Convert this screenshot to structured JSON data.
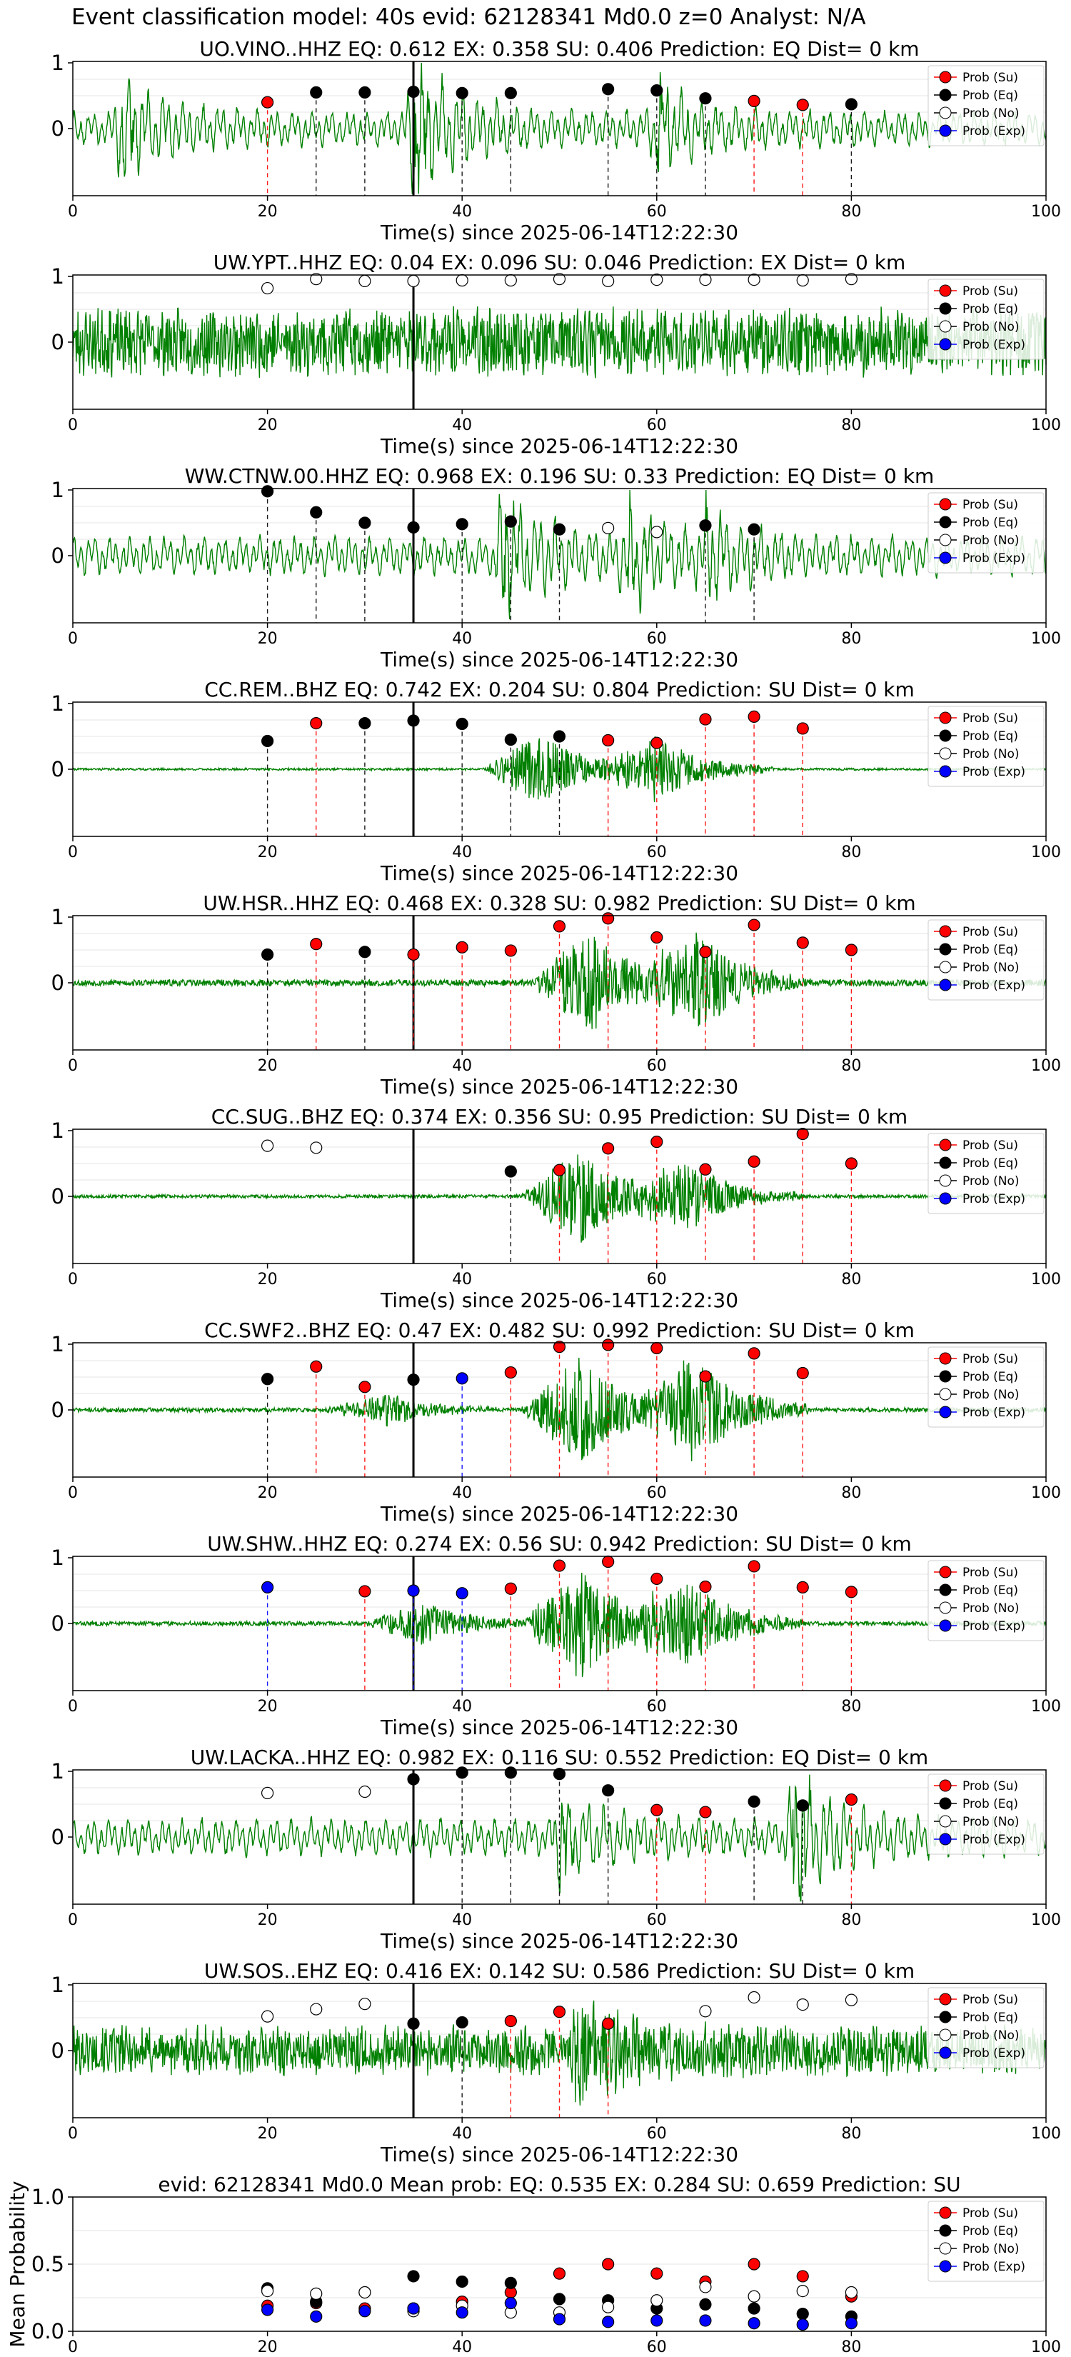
{
  "page": {
    "title": "Event classification model: 40s evid: 62128341 Md0.0 z=0 Analyst: N/A"
  },
  "colors": {
    "trace": "#008000",
    "su": "#ff0000",
    "eq": "#000000",
    "no": "#ffffff",
    "exp": "#0000ff",
    "line_su": "#ff0000",
    "line_eq": "#000000",
    "line_no": "#1f7a1f",
    "line_exp": "#0000ff"
  },
  "legend": {
    "entries": [
      "Prob (Su)",
      "Prob (Eq)",
      "Prob (No)",
      "Prob (Exp)"
    ],
    "placement": "right"
  },
  "chart_data": [
    {
      "type": "line",
      "title": "UO.VINO..HHZ   EQ: 0.612  EX: 0.358  SU: 0.406   Prediction: EQ    Dist= 0 km",
      "xlabel": "Time(s) since 2025-06-14T12:22:30",
      "ylabel": "",
      "xlim": [
        0,
        100
      ],
      "ylim": [
        -1,
        1
      ],
      "xticks": [
        "0",
        "20",
        "40",
        "60",
        "80",
        "100"
      ],
      "yticks": [
        "0",
        "1"
      ],
      "onset_line": 35,
      "trace": {
        "style": "low",
        "seed": 11,
        "amp": 0.28,
        "events": [
          [
            5,
            0.6
          ],
          [
            35,
            0.9
          ],
          [
            60,
            0.5
          ]
        ]
      },
      "points": [
        {
          "x": 20,
          "y": 0.4,
          "cls": "su"
        },
        {
          "x": 25,
          "y": 0.55,
          "cls": "eq"
        },
        {
          "x": 30,
          "y": 0.55,
          "cls": "eq"
        },
        {
          "x": 35,
          "y": 0.56,
          "cls": "eq"
        },
        {
          "x": 40,
          "y": 0.54,
          "cls": "eq"
        },
        {
          "x": 45,
          "y": 0.54,
          "cls": "eq"
        },
        {
          "x": 55,
          "y": 0.6,
          "cls": "eq"
        },
        {
          "x": 60,
          "y": 0.58,
          "cls": "eq"
        },
        {
          "x": 65,
          "y": 0.46,
          "cls": "eq"
        },
        {
          "x": 70,
          "y": 0.42,
          "cls": "su"
        },
        {
          "x": 75,
          "y": 0.36,
          "cls": "su"
        },
        {
          "x": 80,
          "y": 0.37,
          "cls": "eq"
        }
      ]
    },
    {
      "type": "line",
      "title": "UW.YPT..HHZ   EQ: 0.04  EX: 0.096  SU: 0.046   Prediction: EX    Dist= 0 km",
      "xlabel": "Time(s) since 2025-06-14T12:22:30",
      "ylabel": "",
      "xlim": [
        0,
        100
      ],
      "ylim": [
        -1,
        1
      ],
      "xticks": [
        "0",
        "20",
        "40",
        "60",
        "80",
        "100"
      ],
      "yticks": [
        "0",
        "1"
      ],
      "onset_line": 35,
      "trace": {
        "style": "noise",
        "seed": 23,
        "amp": 0.55,
        "events": []
      },
      "points": [
        {
          "x": 20,
          "y": 0.82,
          "cls": "no"
        },
        {
          "x": 25,
          "y": 0.96,
          "cls": "no"
        },
        {
          "x": 30,
          "y": 0.93,
          "cls": "no"
        },
        {
          "x": 35,
          "y": 0.93,
          "cls": "no"
        },
        {
          "x": 40,
          "y": 0.94,
          "cls": "no"
        },
        {
          "x": 45,
          "y": 0.94,
          "cls": "no"
        },
        {
          "x": 50,
          "y": 0.96,
          "cls": "no"
        },
        {
          "x": 55,
          "y": 0.93,
          "cls": "no"
        },
        {
          "x": 60,
          "y": 0.95,
          "cls": "no"
        },
        {
          "x": 65,
          "y": 0.95,
          "cls": "no"
        },
        {
          "x": 70,
          "y": 0.95,
          "cls": "no"
        },
        {
          "x": 75,
          "y": 0.94,
          "cls": "no"
        },
        {
          "x": 80,
          "y": 0.96,
          "cls": "no"
        }
      ]
    },
    {
      "type": "line",
      "title": "WW.CTNW.00.HHZ   EQ: 0.968  EX: 0.196  SU: 0.33   Prediction: EQ    Dist= 0 km",
      "xlabel": "Time(s) since 2025-06-14T12:22:30",
      "ylabel": "",
      "xlim": [
        0,
        100
      ],
      "ylim": [
        -1,
        1
      ],
      "xticks": [
        "0",
        "20",
        "40",
        "60",
        "80",
        "100"
      ],
      "yticks": [
        "0",
        "1"
      ],
      "onset_line": 35,
      "trace": {
        "style": "low",
        "seed": 37,
        "amp": 0.32,
        "events": [
          [
            44,
            0.75
          ],
          [
            57,
            0.55
          ],
          [
            65,
            0.35
          ]
        ]
      },
      "points": [
        {
          "x": 20,
          "y": 0.98,
          "cls": "eq"
        },
        {
          "x": 25,
          "y": 0.66,
          "cls": "eq"
        },
        {
          "x": 30,
          "y": 0.5,
          "cls": "eq"
        },
        {
          "x": 35,
          "y": 0.43,
          "cls": "eq"
        },
        {
          "x": 40,
          "y": 0.48,
          "cls": "eq"
        },
        {
          "x": 45,
          "y": 0.52,
          "cls": "eq"
        },
        {
          "x": 50,
          "y": 0.4,
          "cls": "eq"
        },
        {
          "x": 55,
          "y": 0.42,
          "cls": "no"
        },
        {
          "x": 60,
          "y": 0.36,
          "cls": "no"
        },
        {
          "x": 65,
          "y": 0.46,
          "cls": "eq"
        },
        {
          "x": 70,
          "y": 0.4,
          "cls": "eq"
        }
      ]
    },
    {
      "type": "line",
      "title": "CC.REM..BHZ   EQ: 0.742  EX: 0.204  SU: 0.804   Prediction: SU    Dist= 0 km",
      "xlabel": "Time(s) since 2025-06-14T12:22:30",
      "ylabel": "",
      "xlim": [
        0,
        100
      ],
      "ylim": [
        -1,
        1
      ],
      "xticks": [
        "0",
        "20",
        "40",
        "60",
        "80",
        "100"
      ],
      "yticks": [
        "0",
        "1"
      ],
      "onset_line": 35,
      "trace": {
        "style": "burst",
        "seed": 41,
        "amp": 0.02,
        "events": [
          [
            48,
            0.55
          ],
          [
            60,
            0.5
          ]
        ]
      },
      "points": [
        {
          "x": 20,
          "y": 0.43,
          "cls": "eq"
        },
        {
          "x": 25,
          "y": 0.7,
          "cls": "su"
        },
        {
          "x": 30,
          "y": 0.7,
          "cls": "eq"
        },
        {
          "x": 35,
          "y": 0.74,
          "cls": "eq"
        },
        {
          "x": 40,
          "y": 0.69,
          "cls": "eq"
        },
        {
          "x": 45,
          "y": 0.45,
          "cls": "eq"
        },
        {
          "x": 50,
          "y": 0.5,
          "cls": "eq"
        },
        {
          "x": 55,
          "y": 0.44,
          "cls": "su"
        },
        {
          "x": 60,
          "y": 0.4,
          "cls": "su"
        },
        {
          "x": 65,
          "y": 0.76,
          "cls": "su"
        },
        {
          "x": 70,
          "y": 0.8,
          "cls": "su"
        },
        {
          "x": 75,
          "y": 0.62,
          "cls": "su"
        }
      ]
    },
    {
      "type": "line",
      "title": "UW.HSR..HHZ   EQ: 0.468  EX: 0.328  SU: 0.982   Prediction: SU    Dist= 0 km",
      "xlabel": "Time(s) since 2025-06-14T12:22:30",
      "ylabel": "",
      "xlim": [
        0,
        100
      ],
      "ylim": [
        -1,
        1
      ],
      "xticks": [
        "0",
        "20",
        "40",
        "60",
        "80",
        "100"
      ],
      "yticks": [
        "0",
        "1"
      ],
      "onset_line": 35,
      "trace": {
        "style": "burst",
        "seed": 53,
        "amp": 0.06,
        "events": [
          [
            53,
            0.85
          ],
          [
            64,
            0.8
          ]
        ]
      },
      "points": [
        {
          "x": 20,
          "y": 0.43,
          "cls": "eq"
        },
        {
          "x": 25,
          "y": 0.59,
          "cls": "su"
        },
        {
          "x": 30,
          "y": 0.47,
          "cls": "eq"
        },
        {
          "x": 35,
          "y": 0.43,
          "cls": "su"
        },
        {
          "x": 40,
          "y": 0.54,
          "cls": "su"
        },
        {
          "x": 45,
          "y": 0.49,
          "cls": "su"
        },
        {
          "x": 50,
          "y": 0.86,
          "cls": "su"
        },
        {
          "x": 55,
          "y": 0.98,
          "cls": "su"
        },
        {
          "x": 60,
          "y": 0.69,
          "cls": "su"
        },
        {
          "x": 65,
          "y": 0.47,
          "cls": "su"
        },
        {
          "x": 70,
          "y": 0.88,
          "cls": "su"
        },
        {
          "x": 75,
          "y": 0.61,
          "cls": "su"
        },
        {
          "x": 80,
          "y": 0.5,
          "cls": "su"
        }
      ]
    },
    {
      "type": "line",
      "title": "CC.SUG..BHZ   EQ: 0.374  EX: 0.356  SU: 0.95   Prediction: SU    Dist= 0 km",
      "xlabel": "Time(s) since 2025-06-14T12:22:30",
      "ylabel": "",
      "xlim": [
        0,
        100
      ],
      "ylim": [
        -1,
        1
      ],
      "xticks": [
        "0",
        "20",
        "40",
        "60",
        "80",
        "100"
      ],
      "yticks": [
        "0",
        "1"
      ],
      "onset_line": 35,
      "trace": {
        "style": "burst",
        "seed": 67,
        "amp": 0.03,
        "events": [
          [
            52,
            0.75
          ],
          [
            63,
            0.55
          ]
        ]
      },
      "points": [
        {
          "x": 20,
          "y": 0.77,
          "cls": "no"
        },
        {
          "x": 25,
          "y": 0.74,
          "cls": "no"
        },
        {
          "x": 45,
          "y": 0.38,
          "cls": "eq"
        },
        {
          "x": 50,
          "y": 0.4,
          "cls": "su"
        },
        {
          "x": 55,
          "y": 0.73,
          "cls": "su"
        },
        {
          "x": 60,
          "y": 0.83,
          "cls": "su"
        },
        {
          "x": 65,
          "y": 0.41,
          "cls": "su"
        },
        {
          "x": 70,
          "y": 0.53,
          "cls": "su"
        },
        {
          "x": 75,
          "y": 0.95,
          "cls": "su"
        },
        {
          "x": 80,
          "y": 0.5,
          "cls": "su"
        }
      ]
    },
    {
      "type": "line",
      "title": "CC.SWF2..BHZ   EQ: 0.47  EX: 0.482  SU: 0.992   Prediction: SU    Dist= 0 km",
      "xlabel": "Time(s) since 2025-06-14T12:22:30",
      "ylabel": "",
      "xlim": [
        0,
        100
      ],
      "ylim": [
        -1,
        1
      ],
      "xticks": [
        "0",
        "20",
        "40",
        "60",
        "80",
        "100"
      ],
      "yticks": [
        "0",
        "1"
      ],
      "onset_line": 35,
      "trace": {
        "style": "burst",
        "seed": 71,
        "amp": 0.04,
        "events": [
          [
            32,
            0.25
          ],
          [
            52,
            0.85
          ],
          [
            64,
            0.8
          ]
        ]
      },
      "points": [
        {
          "x": 20,
          "y": 0.47,
          "cls": "eq"
        },
        {
          "x": 25,
          "y": 0.66,
          "cls": "su"
        },
        {
          "x": 30,
          "y": 0.35,
          "cls": "su"
        },
        {
          "x": 35,
          "y": 0.46,
          "cls": "eq"
        },
        {
          "x": 40,
          "y": 0.48,
          "cls": "exp"
        },
        {
          "x": 45,
          "y": 0.57,
          "cls": "su"
        },
        {
          "x": 50,
          "y": 0.96,
          "cls": "su"
        },
        {
          "x": 55,
          "y": 0.99,
          "cls": "su"
        },
        {
          "x": 60,
          "y": 0.94,
          "cls": "su"
        },
        {
          "x": 65,
          "y": 0.51,
          "cls": "su"
        },
        {
          "x": 70,
          "y": 0.86,
          "cls": "su"
        },
        {
          "x": 75,
          "y": 0.56,
          "cls": "su"
        }
      ]
    },
    {
      "type": "line",
      "title": "UW.SHW..HHZ   EQ: 0.274  EX: 0.56  SU: 0.942   Prediction: SU    Dist= 0 km",
      "xlabel": "Time(s) since 2025-06-14T12:22:30",
      "ylabel": "",
      "xlim": [
        0,
        100
      ],
      "ylim": [
        -1,
        1
      ],
      "xticks": [
        "0",
        "20",
        "40",
        "60",
        "80",
        "100"
      ],
      "yticks": [
        "0",
        "1"
      ],
      "onset_line": 35,
      "trace": {
        "style": "burst",
        "seed": 83,
        "amp": 0.04,
        "events": [
          [
            36,
            0.35
          ],
          [
            52,
            0.9
          ],
          [
            63,
            0.7
          ]
        ]
      },
      "points": [
        {
          "x": 20,
          "y": 0.55,
          "cls": "exp"
        },
        {
          "x": 30,
          "y": 0.49,
          "cls": "su"
        },
        {
          "x": 35,
          "y": 0.5,
          "cls": "exp"
        },
        {
          "x": 40,
          "y": 0.46,
          "cls": "exp"
        },
        {
          "x": 45,
          "y": 0.53,
          "cls": "su"
        },
        {
          "x": 50,
          "y": 0.88,
          "cls": "su"
        },
        {
          "x": 55,
          "y": 0.94,
          "cls": "su"
        },
        {
          "x": 60,
          "y": 0.68,
          "cls": "su"
        },
        {
          "x": 65,
          "y": 0.56,
          "cls": "su"
        },
        {
          "x": 70,
          "y": 0.87,
          "cls": "su"
        },
        {
          "x": 75,
          "y": 0.55,
          "cls": "su"
        },
        {
          "x": 80,
          "y": 0.48,
          "cls": "su"
        }
      ]
    },
    {
      "type": "line",
      "title": "UW.LACKA..HHZ   EQ: 0.982  EX: 0.116  SU: 0.552   Prediction: EQ    Dist= 0 km",
      "xlabel": "Time(s) since 2025-06-14T12:22:30",
      "ylabel": "",
      "xlim": [
        0,
        100
      ],
      "ylim": [
        -1,
        1
      ],
      "xticks": [
        "0",
        "20",
        "40",
        "60",
        "80",
        "100"
      ],
      "yticks": [
        "0",
        "1"
      ],
      "onset_line": 35,
      "trace": {
        "style": "low",
        "seed": 97,
        "amp": 0.3,
        "events": [
          [
            50,
            0.5
          ],
          [
            74,
            0.75
          ]
        ]
      },
      "points": [
        {
          "x": 20,
          "y": 0.67,
          "cls": "no"
        },
        {
          "x": 30,
          "y": 0.69,
          "cls": "no"
        },
        {
          "x": 35,
          "y": 0.88,
          "cls": "eq"
        },
        {
          "x": 40,
          "y": 0.98,
          "cls": "eq"
        },
        {
          "x": 45,
          "y": 0.98,
          "cls": "eq"
        },
        {
          "x": 50,
          "y": 0.96,
          "cls": "eq"
        },
        {
          "x": 55,
          "y": 0.71,
          "cls": "eq"
        },
        {
          "x": 60,
          "y": 0.41,
          "cls": "su"
        },
        {
          "x": 65,
          "y": 0.38,
          "cls": "su"
        },
        {
          "x": 70,
          "y": 0.54,
          "cls": "eq"
        },
        {
          "x": 75,
          "y": 0.48,
          "cls": "eq"
        },
        {
          "x": 80,
          "y": 0.57,
          "cls": "su"
        }
      ]
    },
    {
      "type": "line",
      "title": "UW.SOS..EHZ   EQ: 0.416  EX: 0.142  SU: 0.586   Prediction: SU    Dist= 0 km",
      "xlabel": "Time(s) since 2025-06-14T12:22:30",
      "ylabel": "",
      "xlim": [
        0,
        100
      ],
      "ylim": [
        -1,
        1
      ],
      "xticks": [
        "0",
        "20",
        "40",
        "60",
        "80",
        "100"
      ],
      "yticks": [
        "0",
        "1"
      ],
      "onset_line": 35,
      "trace": {
        "style": "noise",
        "seed": 101,
        "amp": 0.4,
        "events": [
          [
            52,
            0.55
          ]
        ]
      },
      "points": [
        {
          "x": 20,
          "y": 0.52,
          "cls": "no"
        },
        {
          "x": 25,
          "y": 0.63,
          "cls": "no"
        },
        {
          "x": 30,
          "y": 0.71,
          "cls": "no"
        },
        {
          "x": 35,
          "y": 0.41,
          "cls": "eq"
        },
        {
          "x": 40,
          "y": 0.43,
          "cls": "eq"
        },
        {
          "x": 45,
          "y": 0.45,
          "cls": "su"
        },
        {
          "x": 50,
          "y": 0.59,
          "cls": "su"
        },
        {
          "x": 55,
          "y": 0.41,
          "cls": "su"
        },
        {
          "x": 65,
          "y": 0.6,
          "cls": "no"
        },
        {
          "x": 70,
          "y": 0.81,
          "cls": "no"
        },
        {
          "x": 75,
          "y": 0.7,
          "cls": "no"
        },
        {
          "x": 80,
          "y": 0.77,
          "cls": "no"
        }
      ]
    },
    {
      "type": "scatter",
      "title": "evid: 62128341  Md0.0   Mean prob:   EQ: 0.535  EX: 0.284  SU: 0.659   Prediction: SU",
      "xlabel": "",
      "ylabel": "Mean Probability",
      "xlim": [
        0,
        100
      ],
      "ylim": [
        0,
        1
      ],
      "xticks": [
        "0",
        "20",
        "40",
        "60",
        "80",
        "100"
      ],
      "yticks": [
        "0.0",
        "0.5",
        "1.0"
      ],
      "x": [
        20,
        25,
        30,
        35,
        40,
        45,
        50,
        55,
        60,
        65,
        70,
        75,
        80
      ],
      "series": [
        {
          "cls": "su",
          "values": [
            0.19,
            0.21,
            0.17,
            0.17,
            0.22,
            0.29,
            0.43,
            0.5,
            0.43,
            0.37,
            0.5,
            0.41,
            0.26
          ]
        },
        {
          "cls": "eq",
          "values": [
            0.32,
            0.22,
            0.29,
            0.41,
            0.37,
            0.36,
            0.24,
            0.23,
            0.17,
            0.2,
            0.17,
            0.13,
            0.11
          ]
        },
        {
          "cls": "no",
          "values": [
            0.3,
            0.28,
            0.29,
            0.15,
            0.19,
            0.14,
            0.14,
            0.18,
            0.23,
            0.33,
            0.26,
            0.3,
            0.29
          ]
        },
        {
          "cls": "exp",
          "values": [
            0.16,
            0.11,
            0.15,
            0.17,
            0.14,
            0.21,
            0.09,
            0.07,
            0.08,
            0.08,
            0.06,
            0.05,
            0.06
          ]
        }
      ]
    }
  ]
}
